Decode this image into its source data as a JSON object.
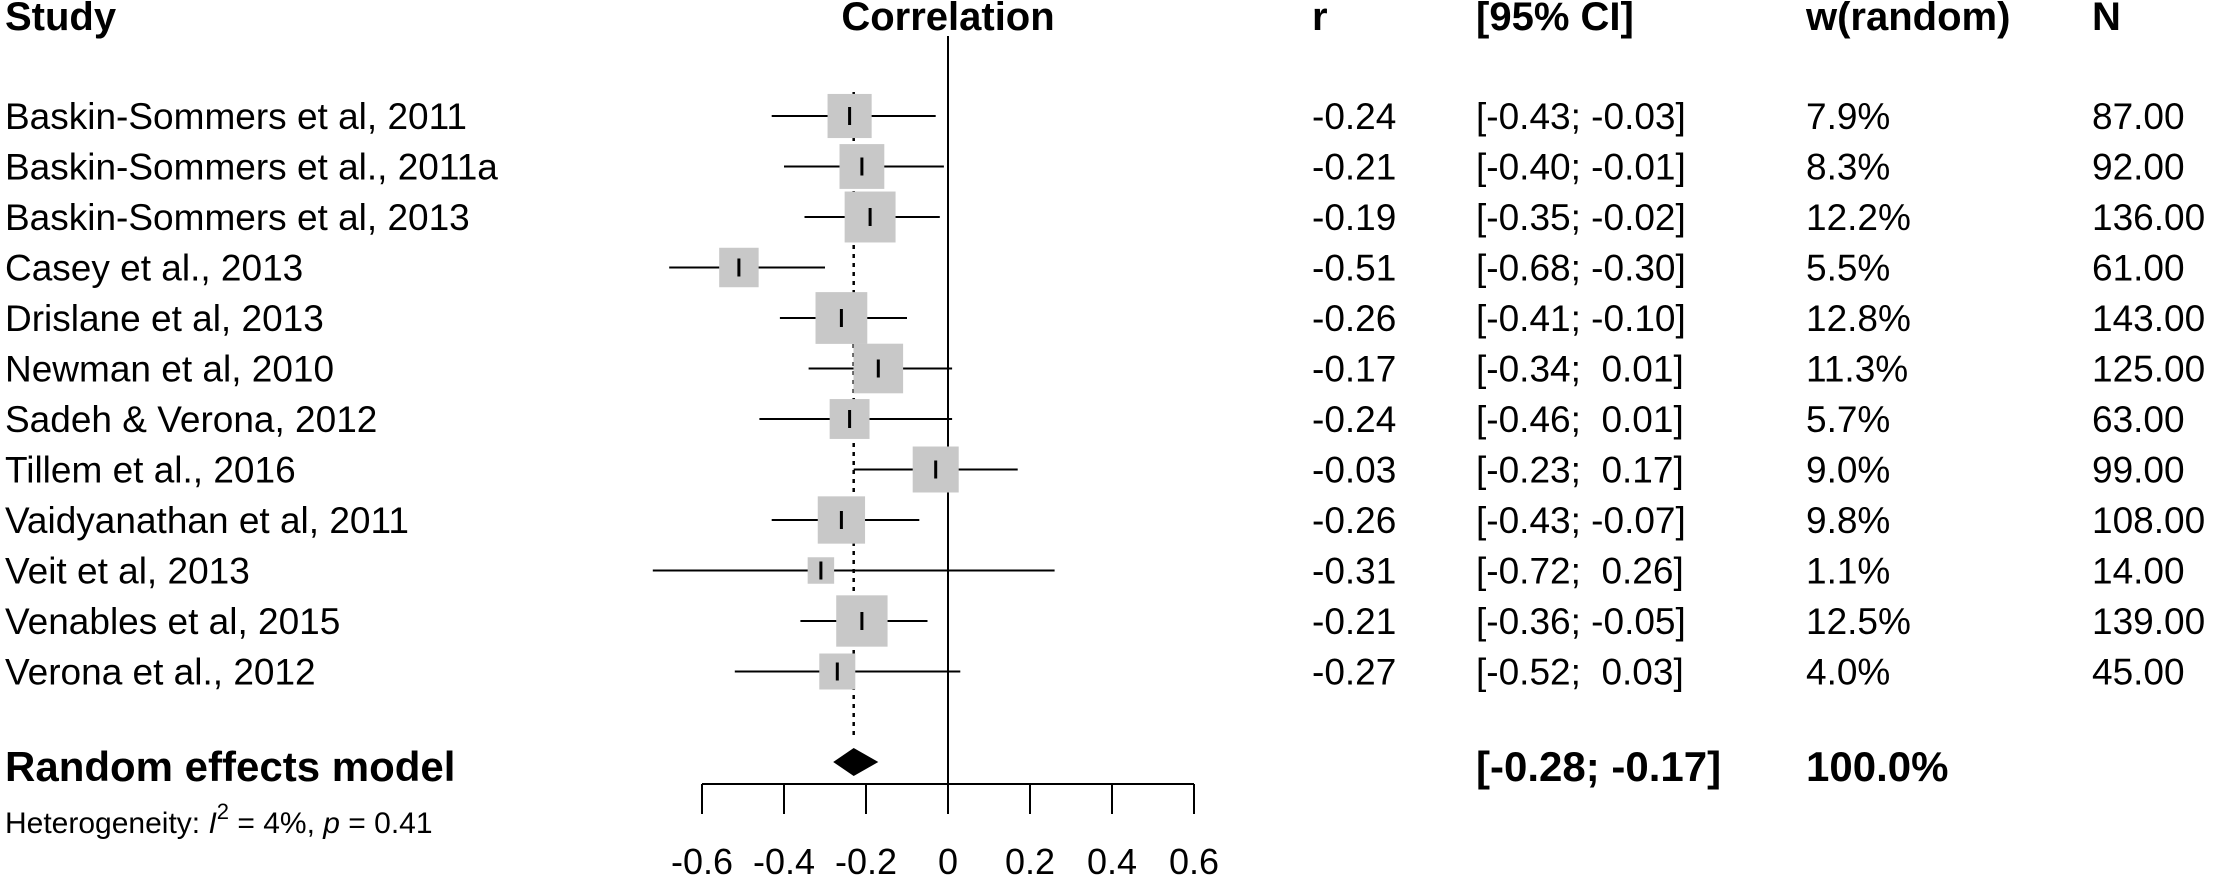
{
  "headers": {
    "study": "Study",
    "plot": "Correlation",
    "r": "r",
    "ci": "[95% CI]",
    "weight": "w(random)",
    "n": "N"
  },
  "summary": {
    "label": "Random effects model",
    "ci": "[-0.28; -0.17]",
    "weight": "100.0%",
    "estimate": -0.23,
    "lower": -0.28,
    "upper": -0.17
  },
  "heterogeneity": {
    "prefix": "Heterogeneity: ",
    "symbol": "I",
    "superscript": "2",
    "rest": " = 4%, ",
    "p_symbol": "p",
    "p_rest": " = 0.41"
  },
  "chart_data": {
    "type": "forest",
    "xlabel": "",
    "xlim": [
      -0.6,
      0.6
    ],
    "x_ticks": [
      -0.6,
      -0.4,
      -0.2,
      0,
      0.2,
      0.4,
      0.6
    ],
    "tick_labels": [
      "-0.6",
      "-0.4",
      "-0.2",
      "0",
      "0.2",
      "0.4",
      "0.6"
    ],
    "null_line": 0,
    "pooled_line": -0.23,
    "studies": [
      {
        "study": "Baskin-Sommers et al, 2011",
        "r": -0.24,
        "lower": -0.43,
        "upper": -0.03,
        "r_text": "-0.24",
        "ci": "[-0.43; -0.03]",
        "weight": "7.9%",
        "weight_value": 7.9,
        "n": "87.00"
      },
      {
        "study": "Baskin-Sommers et al., 2011a",
        "r": -0.21,
        "lower": -0.4,
        "upper": -0.01,
        "r_text": "-0.21",
        "ci": "[-0.40; -0.01]",
        "weight": "8.3%",
        "weight_value": 8.3,
        "n": "92.00"
      },
      {
        "study": "Baskin-Sommers et al, 2013",
        "r": -0.19,
        "lower": -0.35,
        "upper": -0.02,
        "r_text": "-0.19",
        "ci": "[-0.35; -0.02]",
        "weight": "12.2%",
        "weight_value": 12.2,
        "n": "136.00"
      },
      {
        "study": "Casey et al., 2013",
        "r": -0.51,
        "lower": -0.68,
        "upper": -0.3,
        "r_text": "-0.51",
        "ci": "[-0.68; -0.30]",
        "weight": "5.5%",
        "weight_value": 5.5,
        "n": "61.00"
      },
      {
        "study": "Drislane et al, 2013",
        "r": -0.26,
        "lower": -0.41,
        "upper": -0.1,
        "r_text": "-0.26",
        "ci": "[-0.41; -0.10]",
        "weight": "12.8%",
        "weight_value": 12.8,
        "n": "143.00"
      },
      {
        "study": "Newman et al, 2010",
        "r": -0.17,
        "lower": -0.34,
        "upper": 0.01,
        "r_text": "-0.17",
        "ci": "[-0.34;  0.01]",
        "weight": "11.3%",
        "weight_value": 11.3,
        "n": "125.00"
      },
      {
        "study": "Sadeh & Verona, 2012",
        "r": -0.24,
        "lower": -0.46,
        "upper": 0.01,
        "r_text": "-0.24",
        "ci": "[-0.46;  0.01]",
        "weight": "5.7%",
        "weight_value": 5.7,
        "n": "63.00"
      },
      {
        "study": "Tillem et al., 2016",
        "r": -0.03,
        "lower": -0.23,
        "upper": 0.17,
        "r_text": "-0.03",
        "ci": "[-0.23;  0.17]",
        "weight": "9.0%",
        "weight_value": 9.0,
        "n": "99.00"
      },
      {
        "study": "Vaidyanathan et al, 2011",
        "r": -0.26,
        "lower": -0.43,
        "upper": -0.07,
        "r_text": "-0.26",
        "ci": "[-0.43; -0.07]",
        "weight": "9.8%",
        "weight_value": 9.8,
        "n": "108.00"
      },
      {
        "study": "Veit et al, 2013",
        "r": -0.31,
        "lower": -0.72,
        "upper": 0.26,
        "r_text": "-0.31",
        "ci": "[-0.72;  0.26]",
        "weight": "1.1%",
        "weight_value": 1.1,
        "n": "14.00"
      },
      {
        "study": "Venables et al, 2015",
        "r": -0.21,
        "lower": -0.36,
        "upper": -0.05,
        "r_text": "-0.21",
        "ci": "[-0.36; -0.05]",
        "weight": "12.5%",
        "weight_value": 12.5,
        "n": "139.00"
      },
      {
        "study": "Verona et al., 2012",
        "r": -0.27,
        "lower": -0.52,
        "upper": 0.03,
        "r_text": "-0.27",
        "ci": "[-0.52;  0.03]",
        "weight": "4.0%",
        "weight_value": 4.0,
        "n": "45.00"
      }
    ],
    "colors": {
      "box": "#c8c8c8",
      "line": "#000000",
      "diamond": "#000000"
    }
  }
}
